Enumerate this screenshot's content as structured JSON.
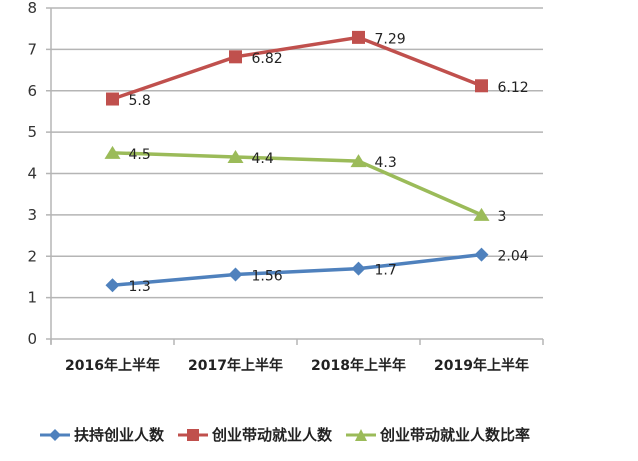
{
  "chart_data": {
    "type": "line",
    "title": "",
    "xlabel": "",
    "ylabel": "",
    "categories": [
      "2016年上半年",
      "2017年上半年",
      "2018年上半年",
      "2019年上半年"
    ],
    "ylim": [
      0,
      8
    ],
    "yticks": [
      0,
      1,
      2,
      3,
      4,
      5,
      6,
      7,
      8
    ],
    "grid": true,
    "legend_position": "bottom",
    "series": [
      {
        "name": "扶持创业人数",
        "values": [
          1.3,
          1.56,
          1.7,
          2.04
        ],
        "labels": [
          "1.3",
          "1.56",
          "1.7",
          "2.04"
        ],
        "color": "#4F81BD",
        "marker": "diamond"
      },
      {
        "name": "创业带动就业人数",
        "values": [
          5.8,
          6.82,
          7.29,
          6.12
        ],
        "labels": [
          "5.8",
          "6.82",
          "7.29",
          "6.12"
        ],
        "color": "#C0504D",
        "marker": "square"
      },
      {
        "name": "创业带动就业人数比率",
        "values": [
          4.5,
          4.4,
          4.3,
          3
        ],
        "labels": [
          "4.5",
          "4.4",
          "4.3",
          "3"
        ],
        "color": "#9BBB59",
        "marker": "triangle"
      }
    ]
  },
  "legend": {
    "items": [
      {
        "label": "扶持创业人数"
      },
      {
        "label": "创业带动就业人数"
      },
      {
        "label": "创业带动就业人数比率"
      }
    ]
  }
}
